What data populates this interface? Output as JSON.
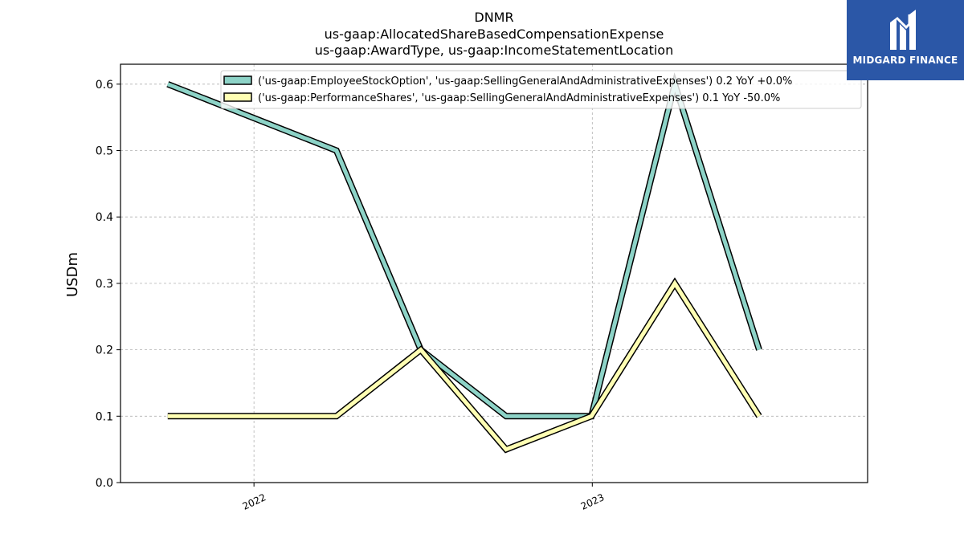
{
  "logo": {
    "text": "MIDGARD FINANCE",
    "bg_color": "#2b57a7",
    "icon": "midgard-logo-icon"
  },
  "chart_data": {
    "type": "line",
    "title_lines": [
      "DNMR",
      "us-gaap:AllocatedShareBasedCompensationExpense",
      "us-gaap:AwardType, us-gaap:IncomeStatementLocation"
    ],
    "ylabel": "USDm",
    "xlabel": "",
    "ylim": [
      0.0,
      0.63
    ],
    "yticks": [
      "0.0",
      "0.1",
      "0.2",
      "0.3",
      "0.4",
      "0.5",
      "0.6"
    ],
    "xticks": [
      {
        "label": "2022",
        "x": "2022-01-01"
      },
      {
        "label": "2023",
        "x": "2023-01-01"
      }
    ],
    "xlim": [
      "2021-08-10",
      "2023-10-25"
    ],
    "grid": true,
    "legend_position": "top-right",
    "x": [
      "2021-09-30",
      "2022-03-31",
      "2022-06-30",
      "2022-09-30",
      "2022-12-31",
      "2023-03-31",
      "2023-06-30"
    ],
    "series": [
      {
        "name": "('us-gaap:EmployeeStockOption', 'us-gaap:SellingGeneralAndAdministrativeExpenses') 0.2 YoY +0.0%",
        "color": "#8dd3c7",
        "values": [
          0.6,
          0.5,
          0.2,
          0.1,
          0.1,
          0.6,
          0.2
        ]
      },
      {
        "name": "('us-gaap:PerformanceShares', 'us-gaap:SellingGeneralAndAdministrativeExpenses') 0.1 YoY -50.0%",
        "color": "#ffffb3",
        "values": [
          0.1,
          0.1,
          0.2,
          0.05,
          0.1,
          0.3,
          0.1
        ]
      }
    ]
  }
}
